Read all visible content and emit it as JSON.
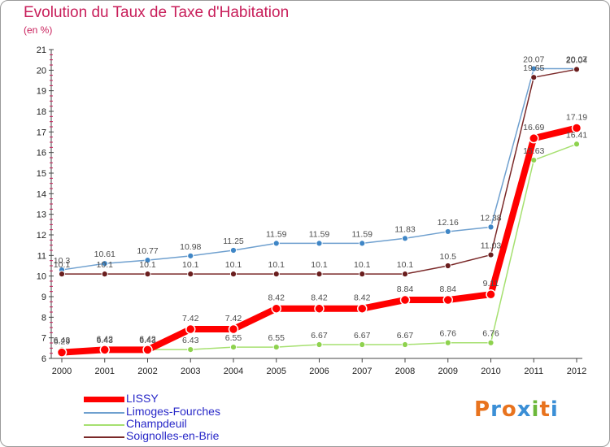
{
  "header": {
    "title": "Evolution du Taux de Taxe d'Habitation",
    "unit": "(en %)"
  },
  "brand": {
    "text": "Proxiti",
    "letter_colors": [
      "#e8731e",
      "#3b8fd6",
      "#e8731e",
      "#3b8fd6",
      "#6cb83a",
      "#e8731e",
      "#3b8fd6"
    ]
  },
  "chart_data": {
    "type": "line",
    "title": "Evolution du Taux de Taxe d'Habitation",
    "ylabel": "(en %)",
    "xlabel": "",
    "x": [
      "2000",
      "2001",
      "2002",
      "2003",
      "2004",
      "2005",
      "2006",
      "2007",
      "2008",
      "2009",
      "2010",
      "2011",
      "2012"
    ],
    "ylim": [
      6,
      21
    ],
    "yticks": [
      6,
      7,
      8,
      9,
      10,
      11,
      12,
      13,
      14,
      15,
      16,
      17,
      18,
      19,
      20,
      21
    ],
    "grid": false,
    "legend_position": "bottom-left",
    "series": [
      {
        "name": "LISSY",
        "color": "#ff0000",
        "values": [
          6.29,
          6.42,
          6.42,
          7.42,
          7.42,
          8.42,
          8.42,
          8.42,
          8.84,
          8.84,
          9.11,
          16.69,
          17.19
        ],
        "labels": [
          "6.29",
          "6.42",
          "6.42",
          "7.42",
          "7.42",
          "8.42",
          "8.42",
          "8.42",
          "8.84",
          "8.84",
          "9.11",
          "16.69",
          "17.19"
        ]
      },
      {
        "name": "Limoges-Fourches",
        "color": "#6fa0cf",
        "values": [
          10.3,
          10.61,
          10.77,
          10.98,
          11.25,
          11.59,
          11.59,
          11.59,
          11.83,
          12.16,
          12.38,
          20.07,
          20.07
        ],
        "labels": [
          "10.3",
          "10.61",
          "10.77",
          "10.98",
          "11.25",
          "11.59",
          "11.59",
          "11.59",
          "11.83",
          "12.16",
          "12.38",
          "20.07",
          "20.07"
        ]
      },
      {
        "name": "Champdeuil",
        "color": "#a6e070",
        "values": [
          6.43,
          6.43,
          6.43,
          6.43,
          6.55,
          6.55,
          6.67,
          6.67,
          6.67,
          6.76,
          6.76,
          15.63,
          16.41
        ],
        "labels": [
          "6.43",
          "6.43",
          "6.43",
          "6.43",
          "6.55",
          "6.55",
          "6.67",
          "6.67",
          "6.67",
          "6.76",
          "6.76",
          "15.63",
          "16.41"
        ]
      },
      {
        "name": "Soignolles-en-Brie",
        "color": "#7a2828",
        "values": [
          10.1,
          10.1,
          10.1,
          10.1,
          10.1,
          10.1,
          10.1,
          10.1,
          10.1,
          10.5,
          11.03,
          19.65,
          20.04
        ],
        "labels": [
          "10.1",
          "10.1",
          "10.1",
          "10.1",
          "10.1",
          "10.1",
          "10.1",
          "10.1",
          "10.1",
          "10.5",
          "11.03",
          "19.65",
          "20.04"
        ]
      }
    ]
  }
}
